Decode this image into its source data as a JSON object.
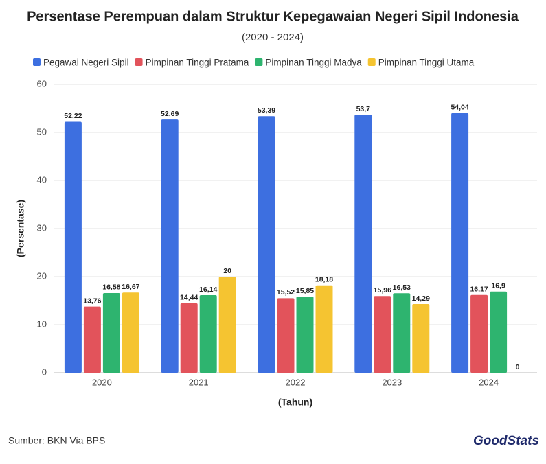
{
  "chart_data": {
    "type": "bar",
    "title": "Persentase Perempuan dalam Struktur Kepegawaian Negeri Sipil Indonesia",
    "subtitle": "(2020 - 2024)",
    "x_label": "(Tahun)",
    "y_label": "(Persentase)",
    "source": "Sumber: BKN Via BPS",
    "brand": "GoodStats",
    "categories": [
      "2020",
      "2021",
      "2022",
      "2023",
      "2024"
    ],
    "series": [
      {
        "name": "Pegawai Negeri Sipil",
        "color": "#3d6fe0",
        "values": [
          52.22,
          52.69,
          53.39,
          53.7,
          54.04
        ],
        "value_labels": [
          "52,22",
          "52,69",
          "53,39",
          "53,7",
          "54,04"
        ]
      },
      {
        "name": "Pimpinan Tinggi Pratama",
        "color": "#e2535b",
        "values": [
          13.76,
          14.44,
          15.52,
          15.96,
          16.17
        ],
        "value_labels": [
          "13,76",
          "14,44",
          "15,52",
          "15,96",
          "16,17"
        ]
      },
      {
        "name": "Pimpinan Tinggi Madya",
        "color": "#2eb46f",
        "values": [
          16.58,
          16.14,
          15.85,
          16.53,
          16.9
        ],
        "value_labels": [
          "16,58",
          "16,14",
          "15,85",
          "16,53",
          "16,9"
        ]
      },
      {
        "name": "Pimpinan Tinggi Utama",
        "color": "#f5c431",
        "values": [
          16.67,
          20,
          18.18,
          14.29,
          0
        ],
        "value_labels": [
          "16,67",
          "20",
          "18,18",
          "14,29",
          "0"
        ]
      }
    ],
    "ylim": [
      0,
      60
    ],
    "yticks": [
      0,
      10,
      20,
      30,
      40,
      50,
      60
    ],
    "grid": true,
    "legend": "top"
  }
}
